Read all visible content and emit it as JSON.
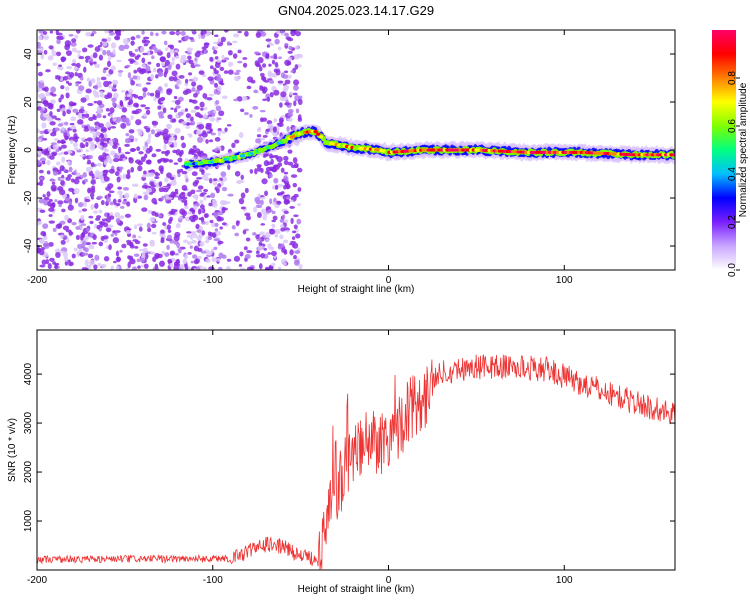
{
  "chart_data": [
    {
      "type": "heatmap",
      "title": "GN04.2025.023.14.17.G29",
      "xlabel": "Height of straight line (km)",
      "ylabel": "Frequency (Hz)",
      "xlim": [
        -200,
        163
      ],
      "ylim": [
        -50,
        50
      ],
      "xticks": [
        -200,
        -100,
        0,
        100
      ],
      "yticks": [
        -40,
        -20,
        0,
        20,
        40
      ],
      "colorbar": {
        "label": "Normalized spectral amplitude",
        "range": [
          0.0,
          1.0
        ],
        "ticks": [
          "0.0",
          "0.2",
          "0.4",
          "0.6",
          "0.8"
        ],
        "colors": [
          "#ffffff",
          "#c9a6ff",
          "#7a1fff",
          "#0000ff",
          "#00bfff",
          "#00ff80",
          "#80ff00",
          "#ffff00",
          "#ff8000",
          "#ff0000",
          "#ff0066"
        ]
      },
      "noise_region_km": [
        -200,
        -50
      ],
      "signal_track": {
        "x": [
          -115,
          -100,
          -80,
          -65,
          -50,
          -42,
          -35,
          -20,
          -5,
          0,
          20,
          50,
          80,
          110,
          140,
          163
        ],
        "y": [
          -6,
          -5,
          -2,
          2,
          7,
          8,
          3,
          1,
          0,
          -1,
          0,
          0,
          -1,
          -1,
          -2,
          -2
        ]
      }
    },
    {
      "type": "line",
      "xlabel": "Height of straight line (km)",
      "ylabel": "SNR (10 * v/v)",
      "xlim": [
        -200,
        163
      ],
      "ylim": [
        0,
        4900
      ],
      "xticks": [
        -200,
        -100,
        0,
        100
      ],
      "yticks": [
        1000,
        2000,
        3000,
        4000
      ],
      "series": [
        {
          "name": "SNR",
          "color": "#ee3333",
          "x": [
            -200,
            -90,
            -80,
            -70,
            -60,
            -50,
            -40,
            -35,
            -30,
            -25,
            -20,
            -15,
            -10,
            -5,
            0,
            5,
            10,
            15,
            20,
            25,
            30,
            50,
            70,
            90,
            110,
            130,
            150,
            163
          ],
          "y": [
            200,
            220,
            380,
            520,
            480,
            280,
            220,
            900,
            1600,
            2000,
            2250,
            2450,
            2700,
            2600,
            2750,
            2900,
            3200,
            3350,
            3550,
            3800,
            4050,
            4150,
            4150,
            4100,
            3800,
            3550,
            3300,
            3200
          ]
        }
      ]
    }
  ]
}
